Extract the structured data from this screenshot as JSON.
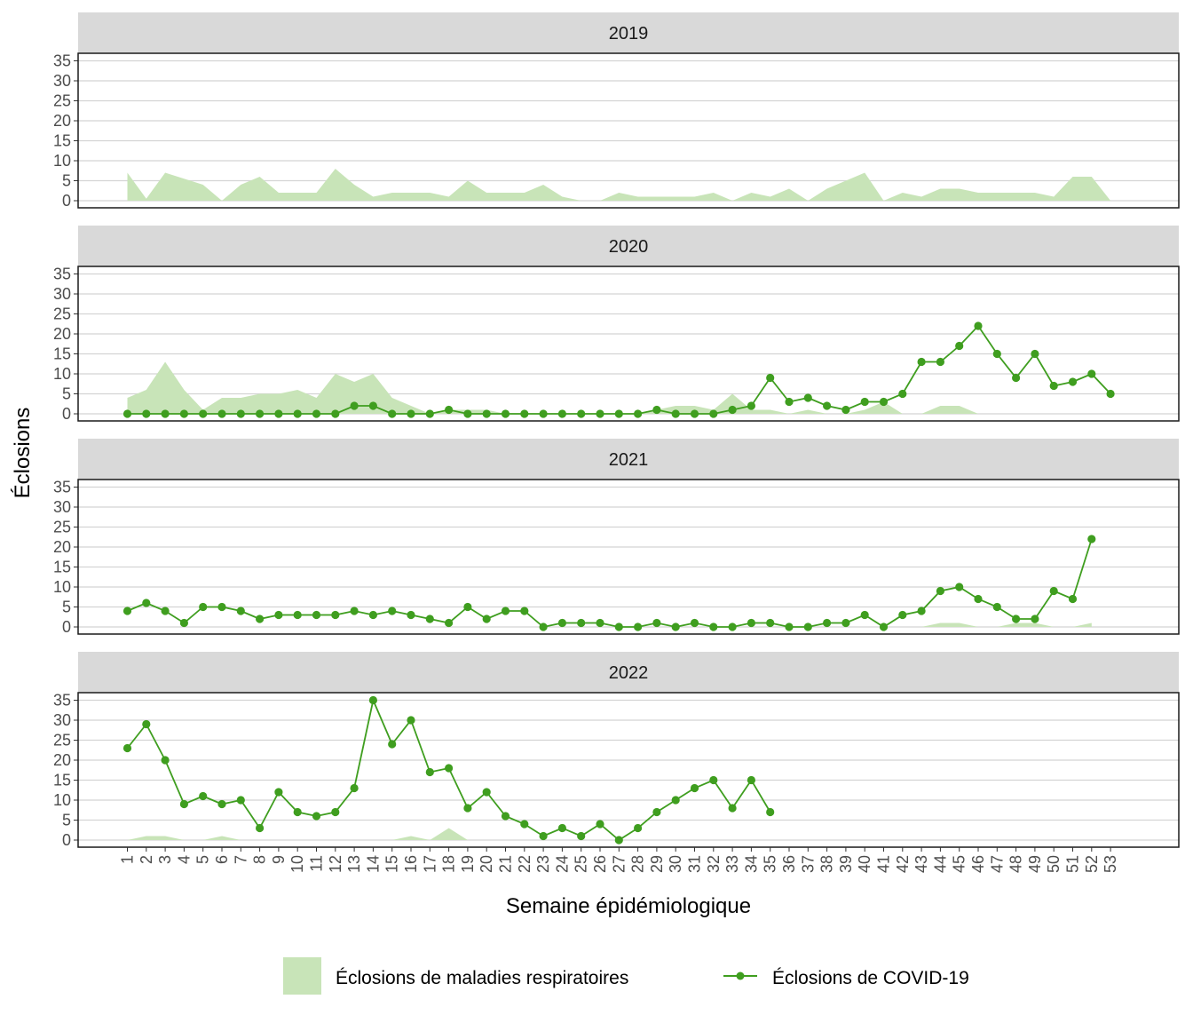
{
  "chart_data": {
    "type": "line",
    "xlabel": "Semaine épidémiologique",
    "ylabel": "Éclosions",
    "ylim": [
      0,
      35
    ],
    "yticks": [
      0,
      5,
      10,
      15,
      20,
      25,
      30,
      35
    ],
    "x_categories": [
      "1",
      "2",
      "3",
      "4",
      "5",
      "6",
      "7",
      "8",
      "9",
      "10",
      "11",
      "12",
      "13",
      "14",
      "15",
      "16",
      "17",
      "18",
      "19",
      "20",
      "21",
      "22",
      "23",
      "24",
      "25",
      "26",
      "27",
      "28",
      "29",
      "30",
      "31",
      "32",
      "33",
      "34",
      "35",
      "36",
      "37",
      "38",
      "39",
      "40",
      "41",
      "42",
      "43",
      "44",
      "45",
      "46",
      "47",
      "48",
      "49",
      "50",
      "51",
      "52",
      "53"
    ],
    "grid": "horizontal",
    "legend_position": "bottom",
    "colors": {
      "area": "#c8e4b8",
      "line": "#3f9e1f",
      "strip": "#d9d9d9"
    },
    "legend": {
      "area_label": "Éclosions de maladies respiratoires",
      "line_label": "Éclosions de COVID-19"
    },
    "panels": [
      {
        "year": "2019",
        "respiratory": [
          7,
          0.5,
          7,
          5.5,
          4,
          0,
          4,
          6,
          2,
          2,
          2,
          8,
          4,
          1,
          2,
          2,
          2,
          1,
          5,
          2,
          2,
          2,
          4,
          1,
          0,
          0,
          2,
          1,
          1,
          1,
          1,
          2,
          0,
          2,
          1,
          3,
          0,
          3,
          5,
          7,
          0,
          2,
          1,
          3,
          3,
          2,
          2,
          2,
          2,
          1,
          6,
          6,
          0
        ],
        "covid": []
      },
      {
        "year": "2020",
        "respiratory": [
          4,
          6,
          13,
          6,
          1,
          4,
          4,
          5,
          5,
          6,
          4,
          10,
          8,
          10,
          4,
          2,
          0,
          1,
          1,
          1,
          0,
          0,
          0,
          0,
          0,
          0,
          0,
          0,
          1,
          2,
          2,
          1,
          5,
          1,
          1,
          0,
          1,
          0,
          0,
          1,
          3,
          0,
          0,
          2,
          2,
          0,
          0,
          0,
          0,
          0,
          0,
          0,
          0
        ],
        "covid": [
          0,
          0,
          0,
          0,
          0,
          0,
          0,
          0,
          0,
          0,
          0,
          0,
          2,
          2,
          0,
          0,
          0,
          1,
          0,
          0,
          0,
          0,
          0,
          0,
          0,
          0,
          0,
          0,
          1,
          0,
          0,
          0,
          1,
          2,
          9,
          3,
          4,
          2,
          1,
          3,
          3,
          5,
          13,
          13,
          17,
          22,
          15,
          9,
          15,
          7,
          8,
          10,
          5
        ]
      },
      {
        "year": "2021",
        "respiratory": [
          0,
          0,
          0,
          0,
          0,
          0,
          0,
          0,
          0,
          0,
          0,
          0,
          0,
          0,
          0,
          0,
          0,
          0,
          0,
          0,
          0,
          0,
          0,
          0,
          0,
          0,
          0,
          0,
          0,
          0,
          0,
          0,
          0,
          0,
          0,
          0,
          0,
          0,
          0,
          0,
          0,
          0,
          0,
          1,
          1,
          0,
          0,
          1,
          1,
          0,
          0,
          1
        ],
        "covid": [
          4,
          6,
          4,
          1,
          5,
          5,
          4,
          2,
          3,
          3,
          3,
          3,
          4,
          3,
          4,
          3,
          2,
          1,
          5,
          2,
          4,
          4,
          0,
          1,
          1,
          1,
          0,
          0,
          1,
          0,
          1,
          0,
          0,
          1,
          1,
          0,
          0,
          1,
          1,
          3,
          0,
          3,
          4,
          9,
          10,
          7,
          5,
          2,
          2,
          9,
          7,
          22
        ]
      },
      {
        "year": "2022",
        "respiratory": [
          0,
          1,
          1,
          0,
          0,
          1,
          0,
          0,
          0,
          0,
          0,
          0,
          0,
          0,
          0,
          1,
          0,
          3,
          0,
          0,
          0,
          0,
          0,
          0,
          0,
          0,
          0,
          0,
          0,
          0,
          0,
          0,
          0,
          0,
          0
        ],
        "covid": [
          23,
          29,
          20,
          9,
          11,
          9,
          10,
          3,
          12,
          7,
          6,
          7,
          13,
          35,
          24,
          30,
          17,
          18,
          8,
          12,
          6,
          4,
          1,
          3,
          1,
          4,
          0,
          3,
          7,
          10,
          13,
          15,
          8,
          15,
          7
        ]
      }
    ]
  }
}
